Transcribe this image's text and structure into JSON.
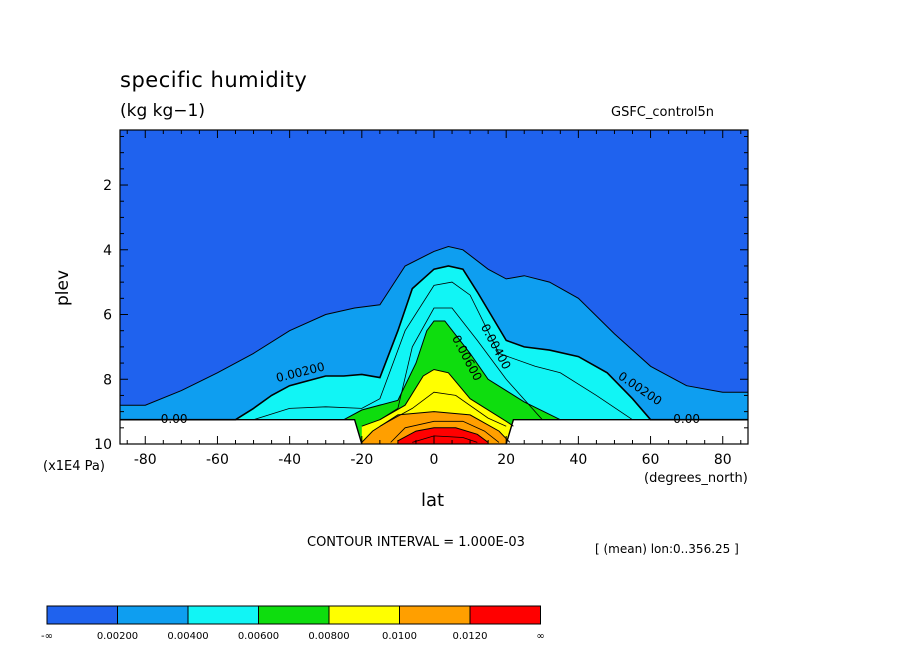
{
  "chart_data": {
    "type": "contour",
    "title": "specific humidity",
    "units": "(kg kg−1)",
    "dataset": "GSFC_control5n",
    "xlabel": "lat",
    "ylabel": "plev",
    "xunits": "(degrees_north)",
    "yunits": "(x1E4 Pa)",
    "xlim": [
      -87,
      87
    ],
    "ylim": [
      10,
      0.3
    ],
    "x_ticks": [
      -80,
      -60,
      -40,
      -20,
      0,
      20,
      40,
      60,
      80
    ],
    "y_ticks": [
      2,
      4,
      6,
      8,
      10
    ],
    "contour_interval_text": "CONTOUR INTERVAL = 1.000E-03",
    "mean_text": "[ (mean) lon:0..356.25 ]",
    "contour_labels": [
      "0.00",
      "0.00200",
      "0.00200",
      "0.00400",
      "0.00600",
      "0.00",
      "0.00200"
    ],
    "colorbar": {
      "colors": [
        "#1f62ee",
        "#0e9ef0",
        "#11f5f5",
        "#0edd0e",
        "#ffff00",
        "#ff9f00",
        "#ff0000"
      ],
      "labels": [
        "-∞",
        "0.00200",
        "0.00400",
        "0.00600",
        "0.00800",
        "0.0100",
        "0.0120",
        "∞"
      ]
    },
    "contours": [
      {
        "level": 0.001,
        "color": "#0e9ef0",
        "points": [
          [
            -90,
            8.8
          ],
          [
            -80,
            8.8
          ],
          [
            -70,
            8.35
          ],
          [
            -60,
            7.8
          ],
          [
            -50,
            7.2
          ],
          [
            -40,
            6.5
          ],
          [
            -30,
            6
          ],
          [
            -22,
            5.8
          ],
          [
            -15,
            5.7
          ],
          [
            -8,
            4.5
          ],
          [
            0,
            4.05
          ],
          [
            4,
            3.9
          ],
          [
            8,
            4.0
          ],
          [
            15,
            4.6
          ],
          [
            20,
            4.9
          ],
          [
            25,
            4.8
          ],
          [
            32,
            5.0
          ],
          [
            40,
            5.5
          ],
          [
            50,
            6.6
          ],
          [
            60,
            7.6
          ],
          [
            70,
            8.2
          ],
          [
            80,
            8.4
          ],
          [
            90,
            8.4
          ]
        ]
      },
      {
        "level": 0.002,
        "color": "#11f5f5",
        "points": [
          [
            -90,
            9.25
          ],
          [
            -55,
            9.25
          ],
          [
            -50,
            8.9
          ],
          [
            -45,
            8.5
          ],
          [
            -40,
            8.2
          ],
          [
            -30,
            7.9
          ],
          [
            -25,
            7.9
          ],
          [
            -20,
            7.85
          ],
          [
            -15,
            7.95
          ],
          [
            -10,
            6.5
          ],
          [
            -6,
            5.2
          ],
          [
            0,
            4.6
          ],
          [
            4,
            4.5
          ],
          [
            8,
            4.6
          ],
          [
            12,
            5.3
          ],
          [
            20,
            6.8
          ],
          [
            25,
            7.0
          ],
          [
            32,
            7.1
          ],
          [
            40,
            7.3
          ],
          [
            48,
            7.8
          ],
          [
            55,
            8.6
          ],
          [
            60,
            9.25
          ],
          [
            90,
            9.25
          ]
        ]
      },
      {
        "level": 0.004,
        "color": "#0edd0e",
        "points": [
          [
            -25,
            9.25
          ],
          [
            -20,
            8.95
          ],
          [
            -10,
            8.65
          ],
          [
            -5,
            7.5
          ],
          [
            -2,
            6.5
          ],
          [
            0,
            6.2
          ],
          [
            3,
            6.2
          ],
          [
            10,
            7.2
          ],
          [
            15,
            8.0
          ],
          [
            25,
            8.7
          ],
          [
            35,
            9.25
          ]
        ]
      },
      {
        "level": 0.006,
        "color": "#ffff00",
        "points": [
          [
            -20,
            9.45
          ],
          [
            -15,
            9.25
          ],
          [
            -8,
            8.8
          ],
          [
            -3,
            7.9
          ],
          [
            0,
            7.7
          ],
          [
            4,
            7.8
          ],
          [
            10,
            8.6
          ],
          [
            20,
            9.3
          ],
          [
            22,
            9.45
          ]
        ]
      },
      {
        "level": 0.008,
        "color": "#ff9f00",
        "points": [
          [
            -20,
            9.95
          ],
          [
            -17,
            9.6
          ],
          [
            -10,
            9.1
          ],
          [
            0,
            9.0
          ],
          [
            10,
            9.1
          ],
          [
            18,
            9.6
          ],
          [
            21,
            9.95
          ]
        ]
      },
      {
        "level": 0.01,
        "color": "#ff0000",
        "points": [
          [
            -10,
            9.9
          ],
          [
            -5,
            9.6
          ],
          [
            0,
            9.5
          ],
          [
            6,
            9.5
          ],
          [
            12,
            9.7
          ],
          [
            15,
            9.95
          ]
        ]
      }
    ],
    "extra_lines": [
      {
        "level": 0.003,
        "points": [
          [
            -50,
            9.25
          ],
          [
            -40,
            8.9
          ],
          [
            -30,
            8.85
          ],
          [
            -20,
            8.9
          ],
          [
            -15,
            8.6
          ],
          [
            -8,
            6.5
          ],
          [
            0,
            5.1
          ],
          [
            5,
            5.0
          ],
          [
            10,
            5.4
          ],
          [
            18,
            7.2
          ],
          [
            28,
            7.6
          ],
          [
            35,
            7.8
          ],
          [
            45,
            8.5
          ],
          [
            55,
            9.25
          ]
        ]
      },
      {
        "level": 0.005,
        "points": [
          [
            -15,
            9.25
          ],
          [
            -10,
            8.9
          ],
          [
            -6,
            7.0
          ],
          [
            0,
            5.8
          ],
          [
            5,
            5.8
          ],
          [
            12,
            6.8
          ],
          [
            20,
            8.0
          ],
          [
            30,
            9.25
          ]
        ]
      },
      {
        "level": 0.007,
        "points": [
          [
            -15,
            9.45
          ],
          [
            -6,
            8.9
          ],
          [
            0,
            8.4
          ],
          [
            6,
            8.5
          ],
          [
            15,
            9.2
          ],
          [
            20,
            9.45
          ]
        ]
      },
      {
        "level": 0.009,
        "points": [
          [
            -12,
            9.95
          ],
          [
            -8,
            9.5
          ],
          [
            0,
            9.3
          ],
          [
            8,
            9.3
          ],
          [
            14,
            9.6
          ],
          [
            18,
            9.95
          ]
        ]
      },
      {
        "level": 0.011,
        "points": [
          [
            -6,
            9.95
          ],
          [
            0,
            9.75
          ],
          [
            8,
            9.8
          ],
          [
            12,
            9.95
          ]
        ]
      }
    ],
    "zero_line": {
      "y": 9.25,
      "hill": [
        [
          -22,
          9.25
        ],
        [
          -20,
          10
        ],
        [
          20,
          10
        ],
        [
          22,
          9.25
        ]
      ]
    }
  }
}
